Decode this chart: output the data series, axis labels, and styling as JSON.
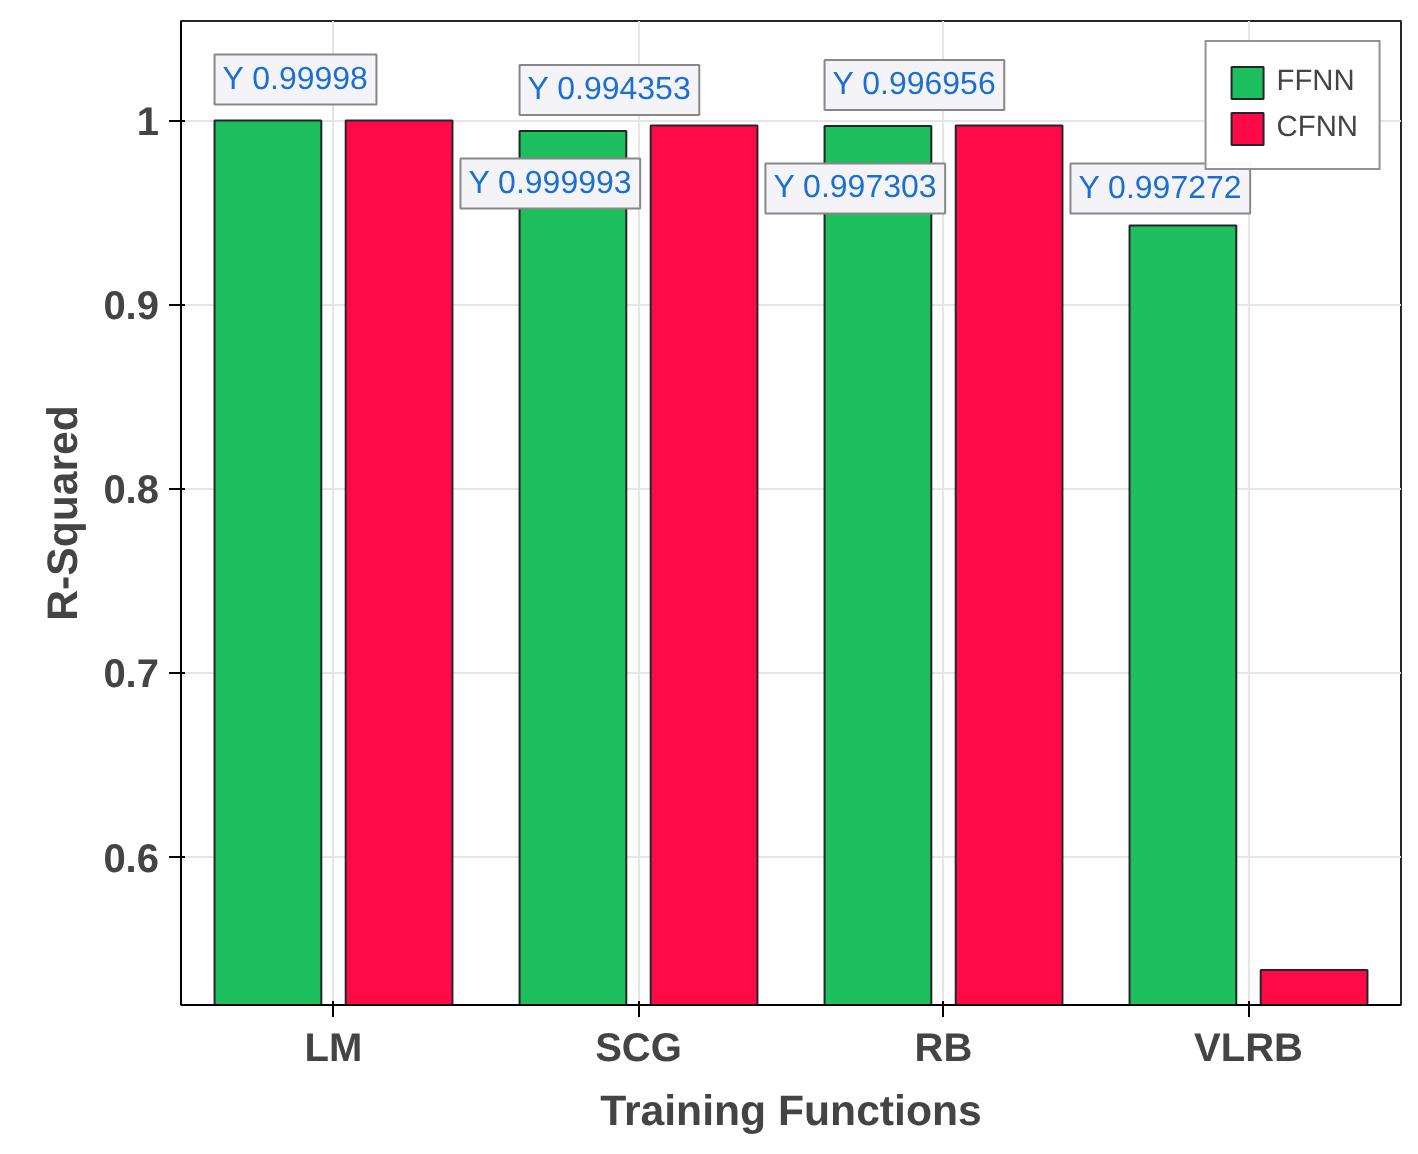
{
  "chart_data": {
    "type": "bar",
    "xlabel": "Training Functions",
    "ylabel": "R-Squared",
    "categories": [
      "LM",
      "SCG",
      "RB",
      "VLRB"
    ],
    "series": [
      {
        "name": "FFNN",
        "color": "#1dbf5e",
        "values": [
          0.99998,
          0.994353,
          0.996956,
          0.943
        ]
      },
      {
        "name": "CFNN",
        "color": "#ff0a48",
        "values": [
          0.999993,
          0.997303,
          0.997272,
          0.539
        ]
      }
    ],
    "ylim": [
      0.52,
      1.054
    ],
    "yticks": [
      0.6,
      0.7,
      0.8,
      0.9,
      1
    ],
    "grid": true,
    "legend": "top right",
    "annotations": [
      "Y 0.99998",
      "Y 0.999993",
      "Y 0.994353",
      "Y 0.997303",
      "Y 0.996956",
      "Y 0.997272"
    ]
  }
}
